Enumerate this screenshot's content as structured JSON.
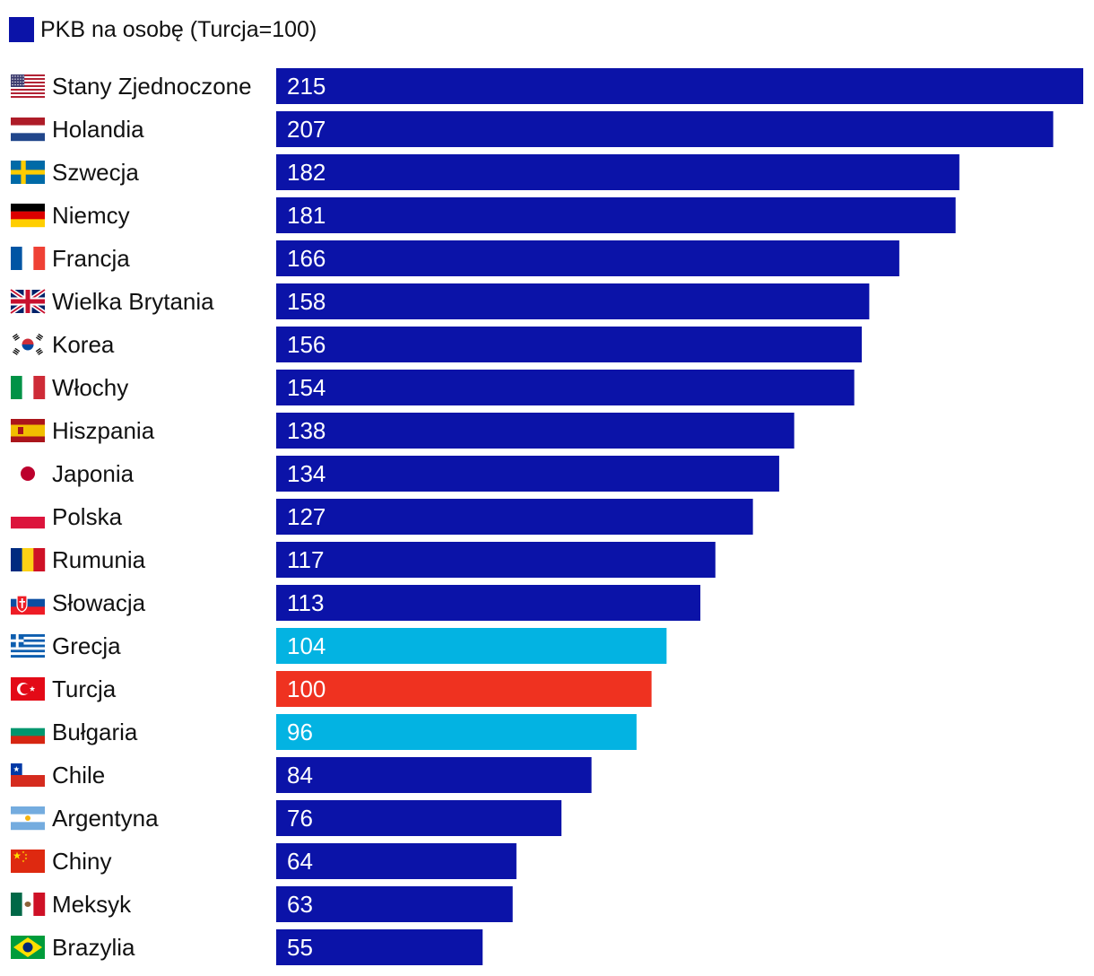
{
  "legend": {
    "label": "PKB na osobę (Turcja=100)",
    "color": "#0b13a8"
  },
  "colors": {
    "default": "#0b13a8",
    "neighbor": "#03b3e2",
    "reference": "#ef3220"
  },
  "chart_data": {
    "type": "bar",
    "orientation": "horizontal",
    "title": "",
    "xlabel": "",
    "ylabel": "",
    "xlim": [
      0,
      215
    ],
    "series": [
      {
        "name": "PKB na osobę (Turcja=100)"
      }
    ],
    "categories": [
      "Stany Zjednoczone",
      "Holandia",
      "Szwecja",
      "Niemcy",
      "Francja",
      "Wielka Brytania",
      "Korea",
      "Włochy",
      "Hiszpania",
      "Japonia",
      "Polska",
      "Rumunia",
      "Słowacja",
      "Grecja",
      "Turcja",
      "Bułgaria",
      "Chile",
      "Argentyna",
      "Chiny",
      "Meksyk",
      "Brazylia"
    ],
    "values": [
      215,
      207,
      182,
      181,
      166,
      158,
      156,
      154,
      138,
      134,
      127,
      117,
      113,
      104,
      100,
      96,
      84,
      76,
      64,
      63,
      55
    ],
    "flags": [
      "flag-us-icon",
      "flag-nl-icon",
      "flag-se-icon",
      "flag-de-icon",
      "flag-fr-icon",
      "flag-gb-icon",
      "flag-kr-icon",
      "flag-it-icon",
      "flag-es-icon",
      "flag-jp-icon",
      "flag-pl-icon",
      "flag-ro-icon",
      "flag-sk-icon",
      "flag-gr-icon",
      "flag-tr-icon",
      "flag-bg-icon",
      "flag-cl-icon",
      "flag-ar-icon",
      "flag-cn-icon",
      "flag-mx-icon",
      "flag-br-icon"
    ],
    "highlight": [
      "default",
      "default",
      "default",
      "default",
      "default",
      "default",
      "default",
      "default",
      "default",
      "default",
      "default",
      "default",
      "default",
      "neighbor",
      "reference",
      "neighbor",
      "default",
      "default",
      "default",
      "default",
      "default"
    ]
  }
}
